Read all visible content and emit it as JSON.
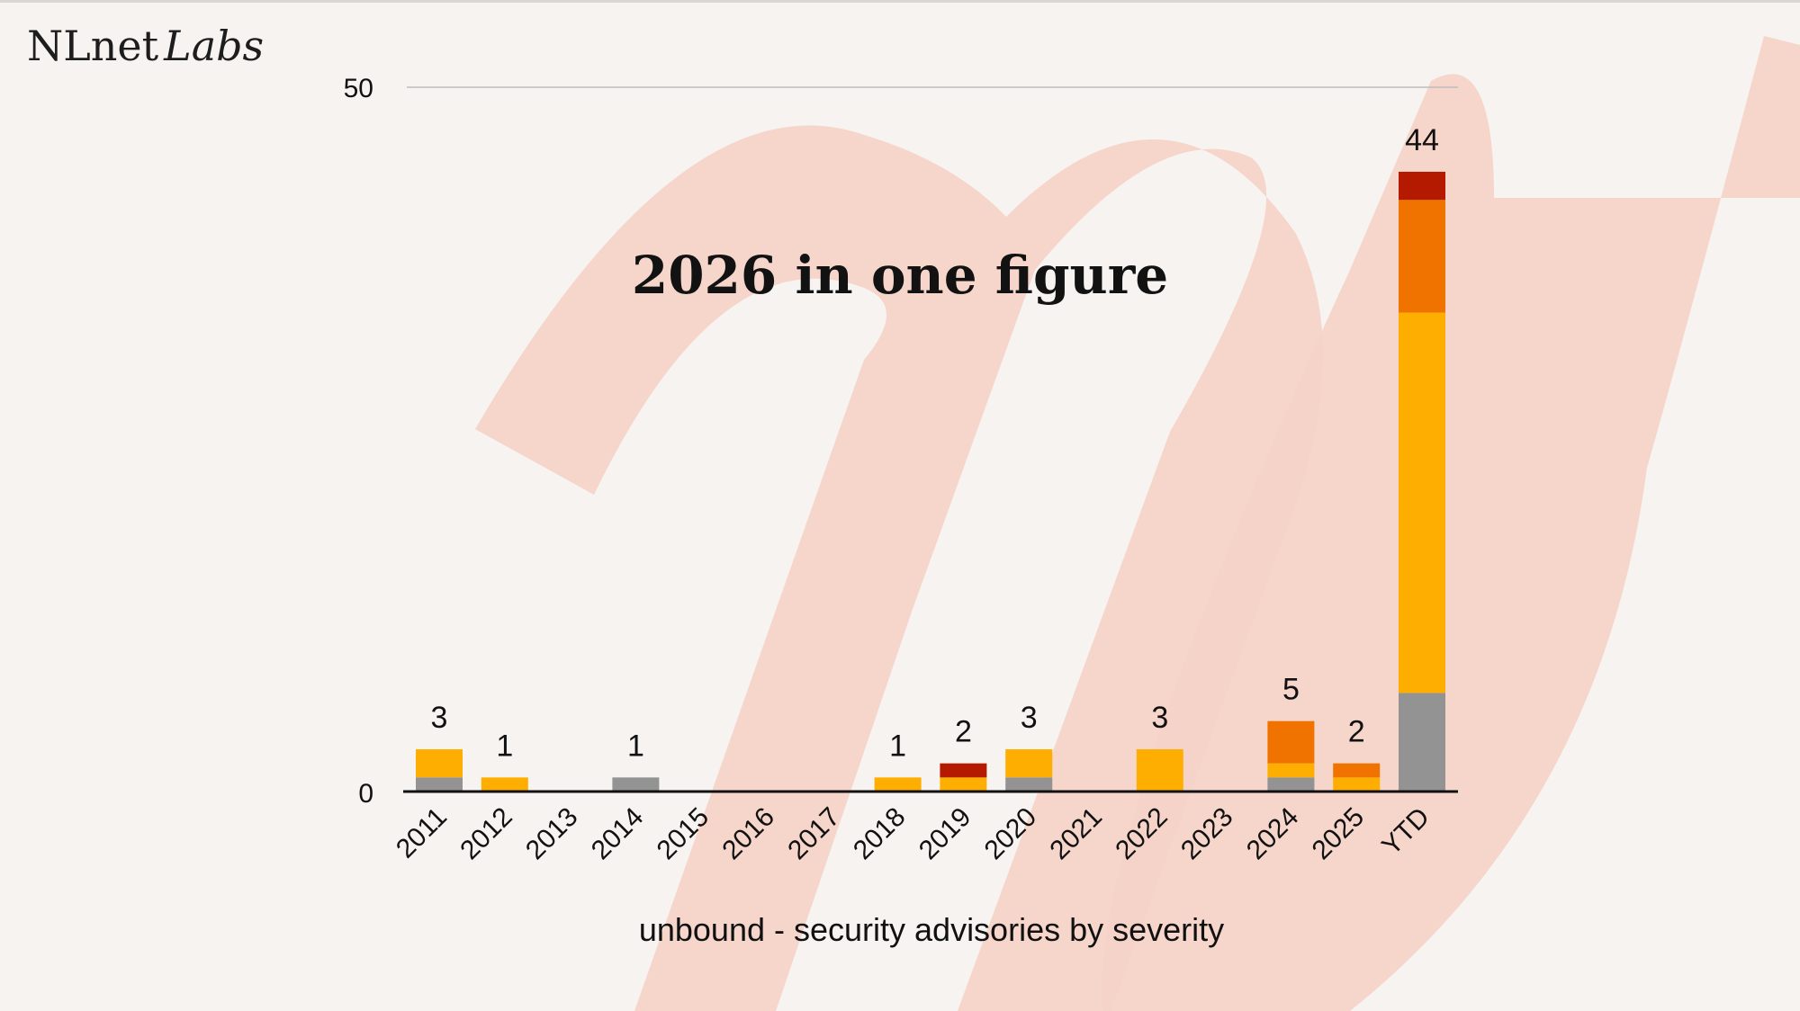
{
  "logo": {
    "brand": "NLnet",
    "suffix": "Labs"
  },
  "slide_title": "2026 in one figure",
  "colors": {
    "background": "#f6f3f1",
    "watermark": "#f5d3c7",
    "axis": "#111111",
    "gridline": "#bdbdbd",
    "text": "#111111"
  },
  "chart_data": {
    "type": "bar",
    "stacked": true,
    "title": "",
    "xlabel": "unbound - security advisories by severity",
    "ylabel": "",
    "ylim": [
      0,
      50
    ],
    "yticks": [
      0,
      50
    ],
    "grid": "horizontal at 50",
    "legend": "none",
    "categories": [
      "2011",
      "2012",
      "2013",
      "2014",
      "2015",
      "2016",
      "2017",
      "2018",
      "2019",
      "2020",
      "2021",
      "2022",
      "2023",
      "2024",
      "2025",
      "YTD"
    ],
    "totals": [
      "3",
      "1",
      "",
      "1",
      "",
      "",
      "",
      "1",
      "2",
      "3",
      "",
      "3",
      "",
      "5",
      "2",
      "44"
    ],
    "series": [
      {
        "color": "#939393",
        "values": [
          1,
          0,
          0,
          1,
          0,
          0,
          0,
          0,
          0,
          1,
          0,
          0,
          0,
          1,
          0,
          7
        ]
      },
      {
        "color": "#fdae00",
        "values": [
          2,
          1,
          0,
          0,
          0,
          0,
          0,
          1,
          1,
          2,
          0,
          3,
          0,
          1,
          1,
          27
        ]
      },
      {
        "color": "#f07300",
        "values": [
          0,
          0,
          0,
          0,
          0,
          0,
          0,
          0,
          0,
          0,
          0,
          0,
          0,
          3,
          1,
          8
        ]
      },
      {
        "color": "#b31a00",
        "values": [
          0,
          0,
          0,
          0,
          0,
          0,
          0,
          0,
          1,
          0,
          0,
          0,
          0,
          0,
          0,
          2
        ]
      }
    ]
  }
}
